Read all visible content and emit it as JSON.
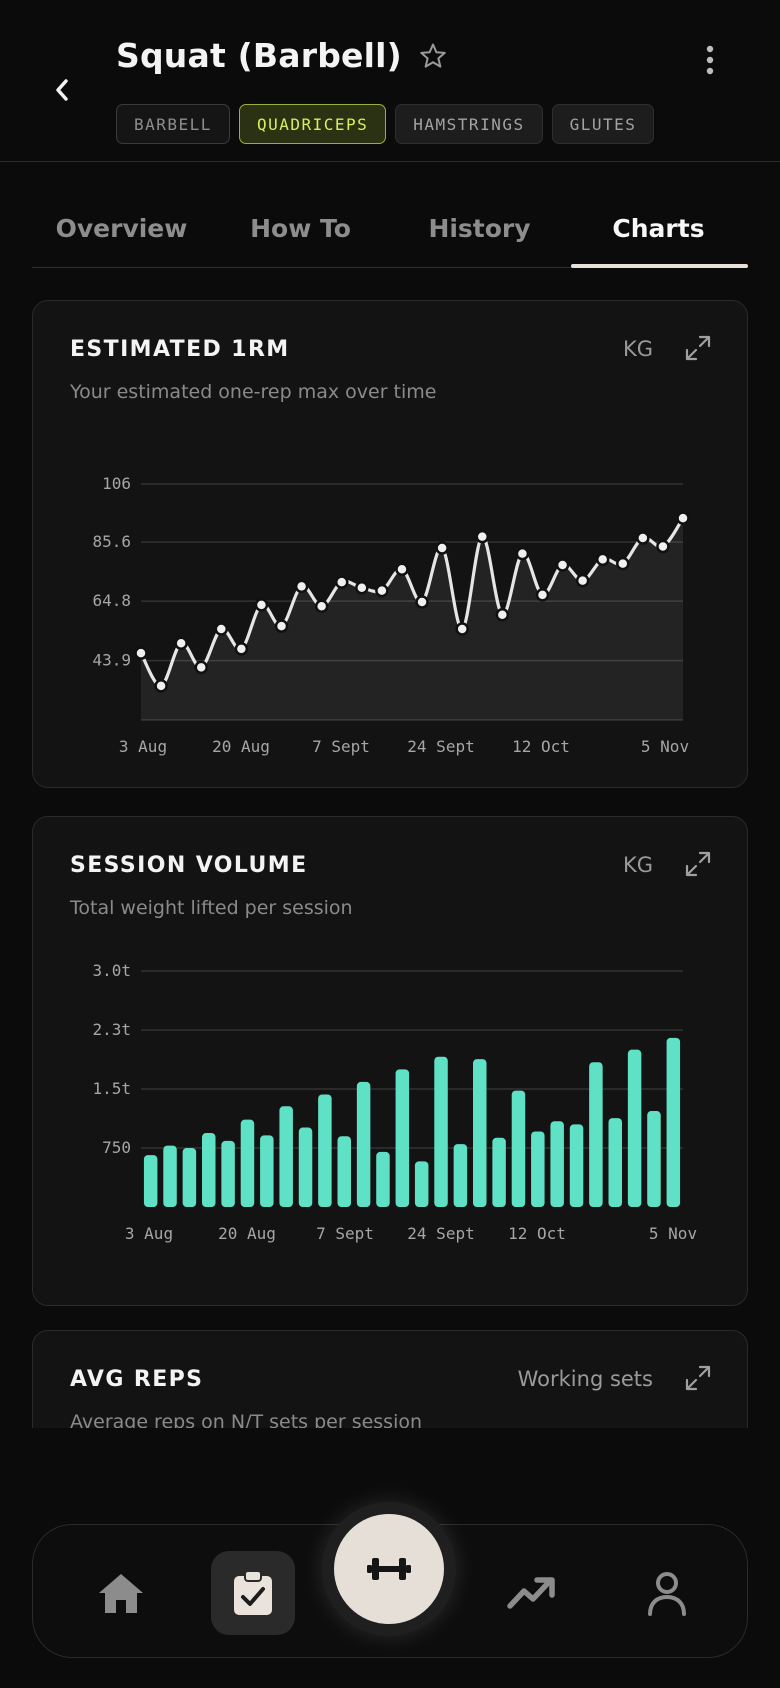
{
  "header": {
    "title": "Squat (Barbell)",
    "tags": [
      "BARBELL",
      "QUADRICEPS",
      "HAMSTRINGS",
      "GLUTES"
    ],
    "active_tag": "QUADRICEPS"
  },
  "tabs": [
    {
      "label": "Overview",
      "active": false
    },
    {
      "label": "How To",
      "active": false
    },
    {
      "label": "History",
      "active": false
    },
    {
      "label": "Charts",
      "active": true
    }
  ],
  "cards": {
    "e1rm": {
      "title": "ESTIMATED 1RM",
      "subtitle": "Your estimated one-rep max over time",
      "unit": "KG"
    },
    "volume": {
      "title": "SESSION VOLUME",
      "subtitle": "Total weight lifted per session",
      "unit": "KG"
    },
    "avg_reps": {
      "title": "AVG REPS",
      "subtitle": "Average reps on N/T sets per session",
      "unit": "Working sets"
    }
  },
  "colors": {
    "accent_tag": "#d6ef5e",
    "line": "#e6e6e6",
    "bar": "#5ee1c4",
    "fab": "#e5dfd8"
  },
  "icons": [
    "back-icon",
    "star-icon",
    "more-vert-icon",
    "expand-icon",
    "home-icon",
    "clipboard-check-icon",
    "dumbbell-icon",
    "trending-up-icon",
    "person-icon"
  ],
  "chart_data": [
    {
      "type": "line",
      "title": "ESTIMATED 1RM",
      "unit": "KG",
      "x_ticks": [
        "3 Aug",
        "20 Aug",
        "7 Sept",
        "24 Sept",
        "12 Oct",
        "5 Nov"
      ],
      "y_ticks": [
        "106",
        "85.6",
        "64.8",
        "43.9"
      ],
      "ylim": [
        23,
        106
      ],
      "grid": true,
      "series": [
        {
          "x": [
            "3 Aug",
            "6 Aug",
            "10 Aug",
            "13 Aug",
            "17 Aug",
            "20 Aug",
            "24 Aug",
            "27 Aug",
            "30 Aug",
            "3 Sept",
            "7 Sept",
            "10 Sept",
            "14 Sept",
            "17 Sept",
            "21 Sept",
            "24 Sept",
            "27 Sept",
            "1 Oct",
            "4 Oct",
            "8 Oct",
            "12 Oct",
            "15 Oct",
            "19 Oct",
            "23 Oct",
            "27 Oct",
            "31 Oct",
            "2 Nov",
            "5 Nov"
          ],
          "values": [
            46.5,
            35,
            50,
            41.5,
            55,
            48,
            63.5,
            56,
            70,
            63,
            71.5,
            69.5,
            68.5,
            76,
            64.5,
            83.5,
            55,
            87.5,
            60,
            81.5,
            67,
            77.5,
            72,
            79.5,
            78,
            87,
            84,
            94
          ]
        }
      ]
    },
    {
      "type": "bar",
      "title": "SESSION VOLUME",
      "unit": "KG",
      "x_ticks": [
        "3 Aug",
        "20 Aug",
        "7 Sept",
        "24 Sept",
        "12 Oct",
        "5 Nov"
      ],
      "y_ticks": [
        "3.0t",
        "2.3t",
        "1.5t",
        "750"
      ],
      "ylim": [
        0,
        3000
      ],
      "grid": true,
      "series": [
        {
          "values": [
            660,
            780,
            750,
            940,
            840,
            1110,
            910,
            1280,
            1010,
            1430,
            900,
            1590,
            700,
            1750,
            580,
            1910,
            800,
            1880,
            880,
            1480,
            960,
            1090,
            1050,
            1840,
            1130,
            2000,
            1220,
            2150
          ]
        }
      ]
    }
  ]
}
